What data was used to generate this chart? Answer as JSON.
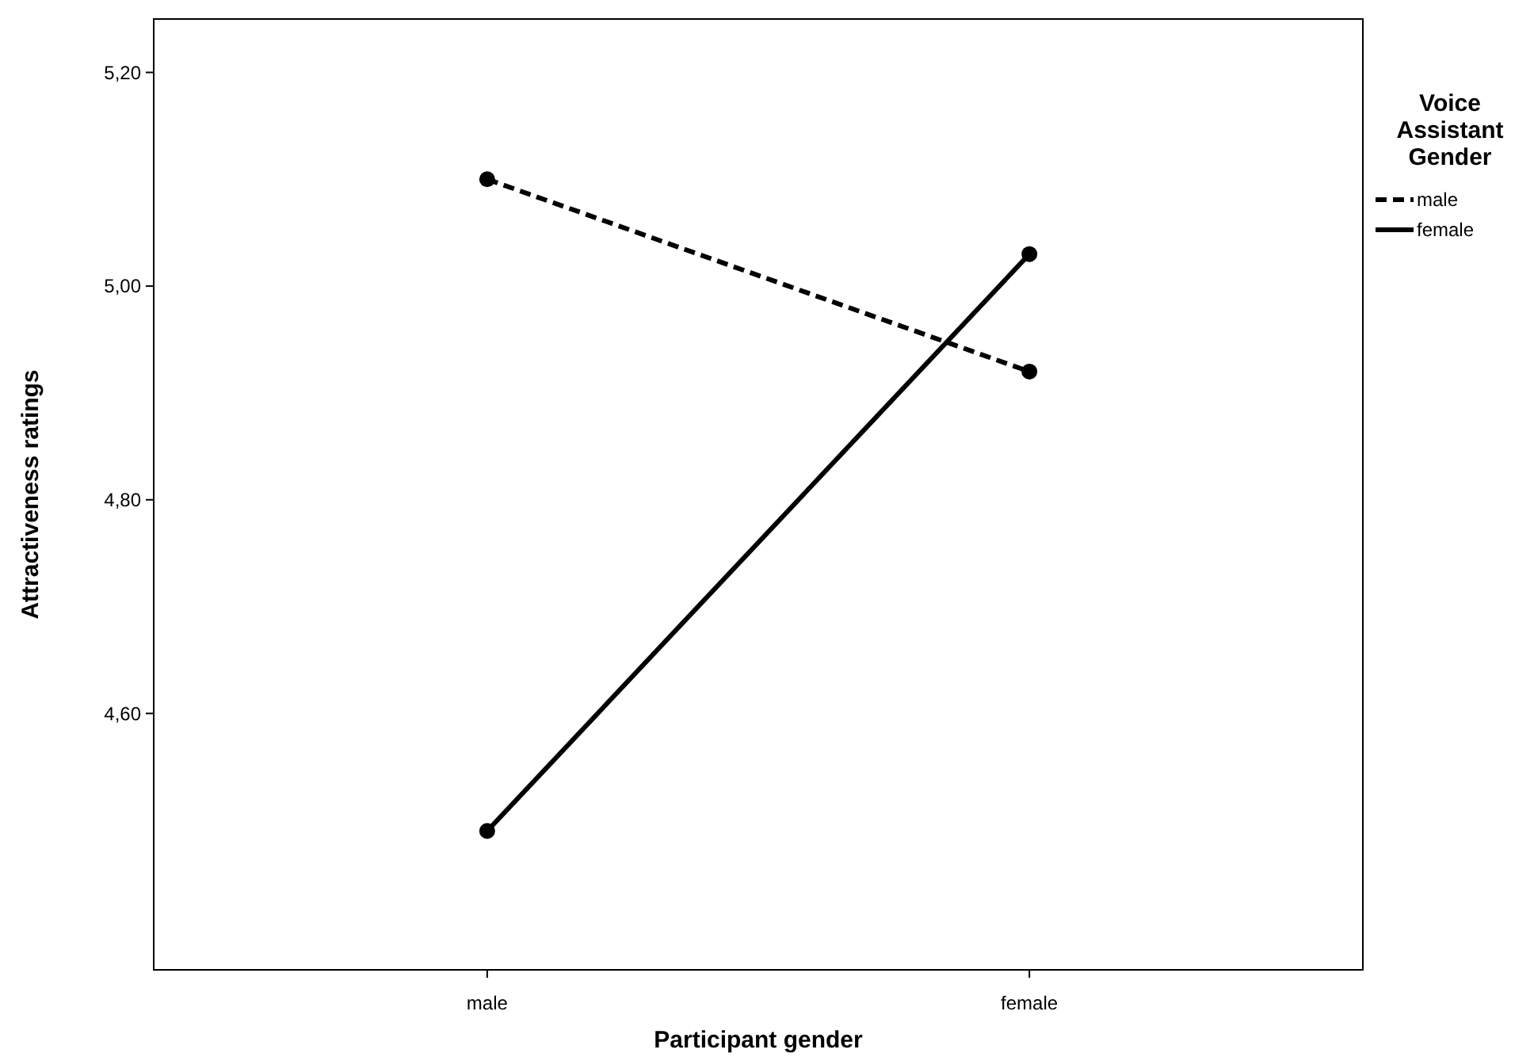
{
  "chart_data": {
    "type": "line",
    "xlabel": "Participant gender",
    "ylabel": "Attractiveness ratings",
    "legend_title": "Voice Assistant Gender",
    "categories": [
      "male",
      "female"
    ],
    "series": [
      {
        "name": "male",
        "color": "#000000",
        "values": [
          5.1,
          4.92
        ],
        "line_style": "dashed"
      },
      {
        "name": "female",
        "color": "#000000",
        "values": [
          4.49,
          5.03
        ],
        "line_style": "solid"
      }
    ],
    "ylim": [
      4.36,
      5.25
    ],
    "yticks": [
      {
        "value": 4.6,
        "label": "4,60"
      },
      {
        "value": 4.8,
        "label": "4,80"
      },
      {
        "value": 5.0,
        "label": "5,00"
      },
      {
        "value": 5.2,
        "label": "5,20"
      }
    ],
    "marker": "circle",
    "legend": "right",
    "grid": false
  }
}
